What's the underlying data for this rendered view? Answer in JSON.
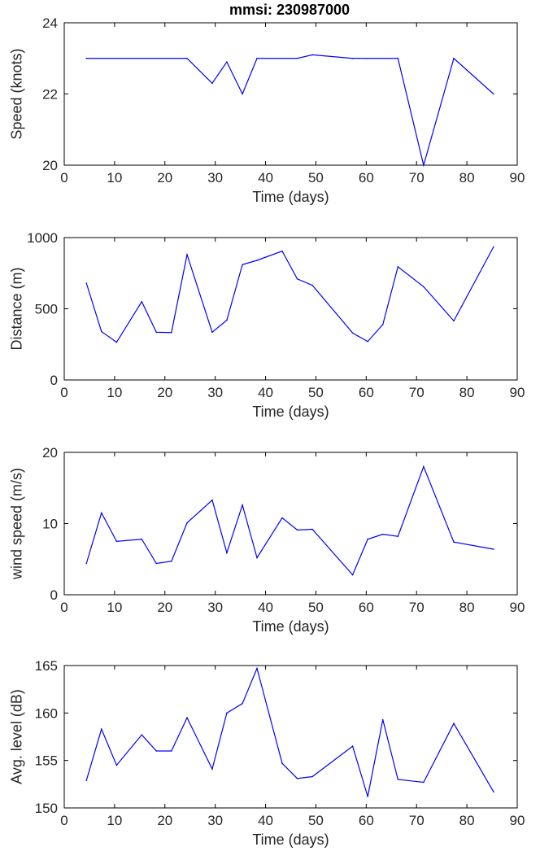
{
  "figure_title": "mmsi: 230987000",
  "colors": {
    "series": "#0000ff",
    "axes": "#000000",
    "text": "#262626"
  },
  "chart_data": [
    {
      "type": "line",
      "title": "mmsi: 230987000",
      "xlabel": "Time (days)",
      "ylabel": "Speed (knots)",
      "xlim": [
        0,
        90
      ],
      "ylim": [
        20,
        24
      ],
      "xticks": [
        0,
        10,
        20,
        30,
        40,
        50,
        60,
        70,
        80,
        90
      ],
      "yticks": [
        20,
        22,
        24
      ],
      "x": [
        4.4,
        24.4,
        29.4,
        32.3,
        35.4,
        38.3,
        46.3,
        49.3,
        57.3,
        60.3,
        66.3,
        71.4,
        77.4,
        85.3
      ],
      "y": [
        23.0,
        23.0,
        22.3,
        22.9,
        22.0,
        23.0,
        23.0,
        23.1,
        23.0,
        23.0,
        23.0,
        20.0,
        23.0,
        22.0
      ]
    },
    {
      "type": "line",
      "title": "",
      "xlabel": "Time (days)",
      "ylabel": "Distance (m)",
      "xlim": [
        0,
        90
      ],
      "ylim": [
        0,
        1000
      ],
      "xticks": [
        0,
        10,
        20,
        30,
        40,
        50,
        60,
        70,
        80,
        90
      ],
      "yticks": [
        0,
        500,
        1000
      ],
      "x": [
        4.4,
        7.4,
        10.4,
        15.4,
        18.3,
        21.3,
        24.4,
        29.4,
        32.3,
        35.4,
        38.3,
        43.3,
        46.3,
        49.3,
        57.3,
        60.3,
        63.3,
        66.3,
        71.4,
        77.4,
        85.3
      ],
      "y": [
        680,
        340,
        265,
        550,
        335,
        333,
        880,
        335,
        420,
        810,
        840,
        905,
        710,
        665,
        330,
        270,
        390,
        795,
        655,
        415,
        935
      ]
    },
    {
      "type": "line",
      "title": "",
      "xlabel": "Time (days)",
      "ylabel": "wind speed (m/s)",
      "xlim": [
        0,
        90
      ],
      "ylim": [
        0,
        20
      ],
      "xticks": [
        0,
        10,
        20,
        30,
        40,
        50,
        60,
        70,
        80,
        90
      ],
      "yticks": [
        0,
        10,
        20
      ],
      "x": [
        4.4,
        7.4,
        10.4,
        15.4,
        18.3,
        21.3,
        24.4,
        29.4,
        32.3,
        35.4,
        38.3,
        43.3,
        46.3,
        49.3,
        57.3,
        60.3,
        63.3,
        66.3,
        71.4,
        77.4,
        85.3
      ],
      "y": [
        4.4,
        11.5,
        7.5,
        7.8,
        4.4,
        4.7,
        10.1,
        13.3,
        5.9,
        12.6,
        5.2,
        10.8,
        9.1,
        9.2,
        2.8,
        7.8,
        8.5,
        8.2,
        18.0,
        7.4,
        6.4
      ]
    },
    {
      "type": "line",
      "title": "",
      "xlabel": "Time (days)",
      "ylabel": "Avg. level (dB)",
      "xlim": [
        0,
        90
      ],
      "ylim": [
        150,
        165
      ],
      "xticks": [
        0,
        10,
        20,
        30,
        40,
        50,
        60,
        70,
        80,
        90
      ],
      "yticks": [
        150,
        155,
        160,
        165
      ],
      "x": [
        4.4,
        7.4,
        10.4,
        15.4,
        18.3,
        21.3,
        24.4,
        29.4,
        32.3,
        35.4,
        38.3,
        43.3,
        46.3,
        49.3,
        57.3,
        60.3,
        63.3,
        66.3,
        71.4,
        77.4,
        85.3
      ],
      "y": [
        152.9,
        158.3,
        154.5,
        157.7,
        156.0,
        156.0,
        159.5,
        154.1,
        160.0,
        161.0,
        164.7,
        154.7,
        153.1,
        153.3,
        156.5,
        151.2,
        159.3,
        153.0,
        152.7,
        158.9,
        151.7
      ]
    }
  ]
}
